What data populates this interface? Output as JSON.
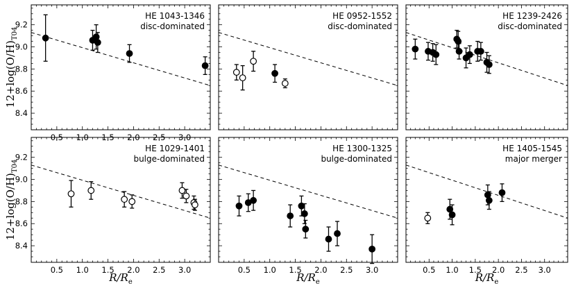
{
  "figure": {
    "ylabel": "12+log(O/H)",
    "ylabel_subscript": "T04",
    "xlabel": "R/R",
    "xlabel_subscript": "e"
  },
  "chart_data": [
    {
      "type": "scatter",
      "title": "HE 1043-1346",
      "subtitle": "disc-dominated",
      "xlim": [
        0,
        3.5
      ],
      "ylim": [
        8.25,
        9.38
      ],
      "xticks": [
        "0.5",
        "1.0",
        "1.5",
        "2.0",
        "2.5",
        "3.0"
      ],
      "yticks": [
        "8.4",
        "8.6",
        "8.8",
        "9.0",
        "9.2"
      ],
      "trend_line": {
        "x": [
          0,
          3.5
        ],
        "y": [
          9.13,
          8.65
        ],
        "style": "dashed"
      },
      "points": [
        {
          "x": 0.28,
          "y": 9.08,
          "err": 0.21,
          "filled": true
        },
        {
          "x": 1.2,
          "y": 9.06,
          "err": 0.09,
          "filled": true
        },
        {
          "x": 1.27,
          "y": 9.09,
          "err": 0.11,
          "filled": true
        },
        {
          "x": 1.3,
          "y": 9.04,
          "err": 0.09,
          "filled": true
        },
        {
          "x": 1.92,
          "y": 8.94,
          "err": 0.08,
          "filled": true
        },
        {
          "x": 3.4,
          "y": 8.83,
          "err": 0.08,
          "filled": true
        }
      ]
    },
    {
      "type": "scatter",
      "title": "HE 0952-1552",
      "subtitle": "disc-dominated",
      "xlim": [
        0,
        3.5
      ],
      "ylim": [
        8.25,
        9.38
      ],
      "trend_line": {
        "x": [
          0,
          3.5
        ],
        "y": [
          9.13,
          8.65
        ],
        "style": "dashed"
      },
      "points": [
        {
          "x": 0.35,
          "y": 8.77,
          "err": 0.07,
          "filled": false
        },
        {
          "x": 0.47,
          "y": 8.72,
          "err": 0.11,
          "filled": false
        },
        {
          "x": 0.68,
          "y": 8.87,
          "err": 0.09,
          "filled": false
        },
        {
          "x": 1.1,
          "y": 8.76,
          "err": 0.08,
          "filled": true
        },
        {
          "x": 1.3,
          "y": 8.67,
          "err": 0.04,
          "filled": false
        }
      ]
    },
    {
      "type": "scatter",
      "title": "HE 1239-2426",
      "subtitle": "disc-dominated",
      "xlim": [
        0,
        3.5
      ],
      "ylim": [
        8.25,
        9.38
      ],
      "trend_line": {
        "x": [
          0,
          3.5
        ],
        "y": [
          9.13,
          8.65
        ],
        "style": "dashed"
      },
      "points": [
        {
          "x": 0.2,
          "y": 8.98,
          "err": 0.09,
          "filled": true
        },
        {
          "x": 0.48,
          "y": 8.96,
          "err": 0.08,
          "filled": true
        },
        {
          "x": 0.58,
          "y": 8.95,
          "err": 0.08,
          "filled": true
        },
        {
          "x": 0.65,
          "y": 8.93,
          "err": 0.09,
          "filled": true
        },
        {
          "x": 1.1,
          "y": 9.07,
          "err": 0.08,
          "filled": true
        },
        {
          "x": 1.13,
          "y": 9.05,
          "err": 0.09,
          "filled": true
        },
        {
          "x": 1.15,
          "y": 8.96,
          "err": 0.07,
          "filled": true
        },
        {
          "x": 1.3,
          "y": 8.9,
          "err": 0.09,
          "filled": true
        },
        {
          "x": 1.38,
          "y": 8.93,
          "err": 0.08,
          "filled": true
        },
        {
          "x": 1.55,
          "y": 8.96,
          "err": 0.09,
          "filled": true
        },
        {
          "x": 1.62,
          "y": 8.96,
          "err": 0.08,
          "filled": true
        },
        {
          "x": 1.75,
          "y": 8.86,
          "err": 0.09,
          "filled": true
        },
        {
          "x": 1.8,
          "y": 8.84,
          "err": 0.08,
          "filled": true
        }
      ]
    },
    {
      "type": "scatter",
      "title": "HE 1029-1401",
      "subtitle": "bulge-dominated",
      "xlim": [
        0,
        3.5
      ],
      "ylim": [
        8.25,
        9.38
      ],
      "xticks": [
        "0.5",
        "1.0",
        "1.5",
        "2.0",
        "2.5",
        "3.0"
      ],
      "yticks": [
        "8.4",
        "8.6",
        "8.8",
        "9.0",
        "9.2"
      ],
      "trend_line": {
        "x": [
          0,
          3.5
        ],
        "y": [
          9.13,
          8.65
        ],
        "style": "dashed"
      },
      "points": [
        {
          "x": 0.78,
          "y": 8.87,
          "err": 0.12,
          "filled": false
        },
        {
          "x": 1.17,
          "y": 8.9,
          "err": 0.08,
          "filled": false
        },
        {
          "x": 1.82,
          "y": 8.82,
          "err": 0.07,
          "filled": false
        },
        {
          "x": 1.97,
          "y": 8.8,
          "err": 0.06,
          "filled": false
        },
        {
          "x": 2.95,
          "y": 8.9,
          "err": 0.07,
          "filled": false
        },
        {
          "x": 3.03,
          "y": 8.85,
          "err": 0.06,
          "filled": false
        },
        {
          "x": 3.18,
          "y": 8.79,
          "err": 0.06,
          "filled": false
        },
        {
          "x": 3.2,
          "y": 8.77,
          "err": 0.05,
          "filled": false
        }
      ]
    },
    {
      "type": "scatter",
      "title": "HE 1300-1325",
      "subtitle": "bulge-dominated",
      "xlim": [
        0,
        3.5
      ],
      "ylim": [
        8.25,
        9.38
      ],
      "xticks": [
        "0.5",
        "1.0",
        "1.5",
        "2.0",
        "2.5",
        "3.0"
      ],
      "trend_line": {
        "x": [
          0,
          3.5
        ],
        "y": [
          9.13,
          8.65
        ],
        "style": "dashed"
      },
      "points": [
        {
          "x": 0.4,
          "y": 8.76,
          "err": 0.09,
          "filled": true
        },
        {
          "x": 0.58,
          "y": 8.79,
          "err": 0.08,
          "filled": true
        },
        {
          "x": 0.68,
          "y": 8.81,
          "err": 0.09,
          "filled": true
        },
        {
          "x": 1.4,
          "y": 8.67,
          "err": 0.1,
          "filled": true
        },
        {
          "x": 1.62,
          "y": 8.76,
          "err": 0.09,
          "filled": true
        },
        {
          "x": 1.68,
          "y": 8.69,
          "err": 0.09,
          "filled": true
        },
        {
          "x": 1.7,
          "y": 8.55,
          "err": 0.08,
          "filled": true
        },
        {
          "x": 2.15,
          "y": 8.46,
          "err": 0.11,
          "filled": true
        },
        {
          "x": 2.32,
          "y": 8.51,
          "err": 0.11,
          "filled": true
        },
        {
          "x": 3.0,
          "y": 8.37,
          "err": 0.13,
          "filled": true
        }
      ]
    },
    {
      "type": "scatter",
      "title": "HE 1405-1545",
      "subtitle": "major merger",
      "xlim": [
        0,
        3.5
      ],
      "ylim": [
        8.25,
        9.38
      ],
      "xticks": [
        "0.5",
        "1.0",
        "1.5",
        "2.0",
        "2.5",
        "3.0"
      ],
      "trend_line": {
        "x": [
          0,
          3.5
        ],
        "y": [
          9.13,
          8.65
        ],
        "style": "dashed"
      },
      "points": [
        {
          "x": 0.47,
          "y": 8.65,
          "err": 0.05,
          "filled": false
        },
        {
          "x": 0.95,
          "y": 8.73,
          "err": 0.09,
          "filled": true
        },
        {
          "x": 1.0,
          "y": 8.68,
          "err": 0.09,
          "filled": true
        },
        {
          "x": 1.77,
          "y": 8.86,
          "err": 0.09,
          "filled": true
        },
        {
          "x": 1.8,
          "y": 8.81,
          "err": 0.08,
          "filled": true
        },
        {
          "x": 2.08,
          "y": 8.88,
          "err": 0.08,
          "filled": true
        }
      ]
    }
  ]
}
